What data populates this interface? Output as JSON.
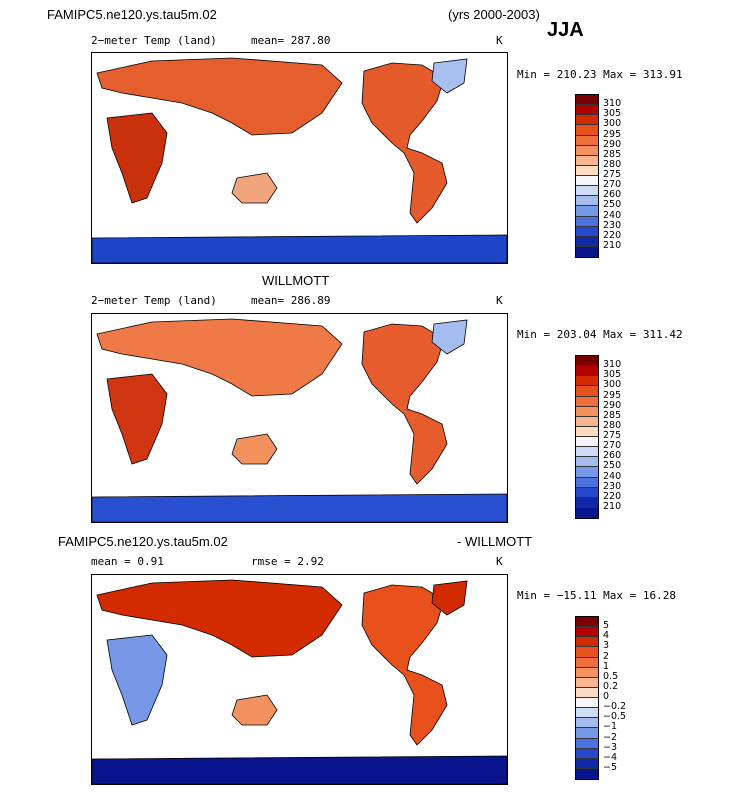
{
  "header": {
    "case_name": "FAMIPC5.ne120.ys.tau5m.02",
    "years": "(yrs 2000-2003)",
    "season": "JJA"
  },
  "panels": [
    {
      "id": "model",
      "title": "",
      "variable": "2−meter Temp (land)",
      "stat1": "mean=  287.80",
      "stat2": "",
      "units": "K",
      "minmax": "Min = 210.23  Max = 313.91"
    },
    {
      "id": "obs",
      "title": "WILLMOTT",
      "variable": "2−meter Temp (land)",
      "stat1": "mean=  286.89",
      "stat2": "",
      "units": "K",
      "minmax": "Min = 203.04  Max = 311.42"
    },
    {
      "id": "diff",
      "title_left": "FAMIPC5.ne120.ys.tau5m.02",
      "title_right": "- WILLMOTT",
      "variable": "",
      "stat1": "mean =     0.91",
      "stat2": "rmse =     2.92",
      "units": "K",
      "minmax": "Min = −15.11  Max =   16.28"
    }
  ],
  "colorbars": {
    "abs": {
      "labels": [
        "310",
        "305",
        "300",
        "295",
        "290",
        "285",
        "280",
        "275",
        "270",
        "260",
        "250",
        "240",
        "230",
        "220",
        "210"
      ],
      "colors": [
        "#7a0000",
        "#b30000",
        "#d42a00",
        "#e8501c",
        "#ee6e3c",
        "#f3925f",
        "#f7b690",
        "#fbdcc3",
        "#f5f5fa",
        "#cfdcf5",
        "#a4bdee",
        "#7698e6",
        "#4b72de",
        "#2648cc",
        "#1128a8",
        "#0a148c"
      ]
    },
    "diff": {
      "labels": [
        "5",
        "4",
        "3",
        "2",
        "1",
        "0.5",
        "0.2",
        "0",
        "−0.2",
        "−0.5",
        "−1",
        "−2",
        "−3",
        "−4",
        "−5"
      ],
      "colors": [
        "#7a0000",
        "#b30000",
        "#d42a00",
        "#e8501c",
        "#ee6e3c",
        "#f3925f",
        "#f7b690",
        "#fbdcc3",
        "#f5f5fa",
        "#cfdcf5",
        "#a4bdee",
        "#7698e6",
        "#4b72de",
        "#2648cc",
        "#1128a8",
        "#0a148c"
      ]
    }
  },
  "chart_data": [
    {
      "type": "heatmap",
      "title": "2−meter Temp (land)",
      "field": "model",
      "mean": 287.8,
      "min": 210.23,
      "max": 313.91,
      "units": "K",
      "levels": [
        210,
        220,
        230,
        240,
        250,
        260,
        270,
        275,
        280,
        285,
        290,
        295,
        300,
        305,
        310
      ]
    },
    {
      "type": "heatmap",
      "title": "2−meter Temp (land)",
      "field": "WILLMOTT",
      "mean": 286.89,
      "min": 203.04,
      "max": 311.42,
      "units": "K",
      "levels": [
        210,
        220,
        230,
        240,
        250,
        260,
        270,
        275,
        280,
        285,
        290,
        295,
        300,
        305,
        310
      ]
    },
    {
      "type": "heatmap",
      "title": "FAMIPC5.ne120.ys.tau5m.02 - WILLMOTT",
      "field": "difference",
      "mean": 0.91,
      "rmse": 2.92,
      "min": -15.11,
      "max": 16.28,
      "units": "K",
      "levels": [
        -5,
        -4,
        -3,
        -2,
        -1,
        -0.5,
        -0.2,
        0,
        0.2,
        0.5,
        1,
        2,
        3,
        4,
        5
      ]
    }
  ]
}
